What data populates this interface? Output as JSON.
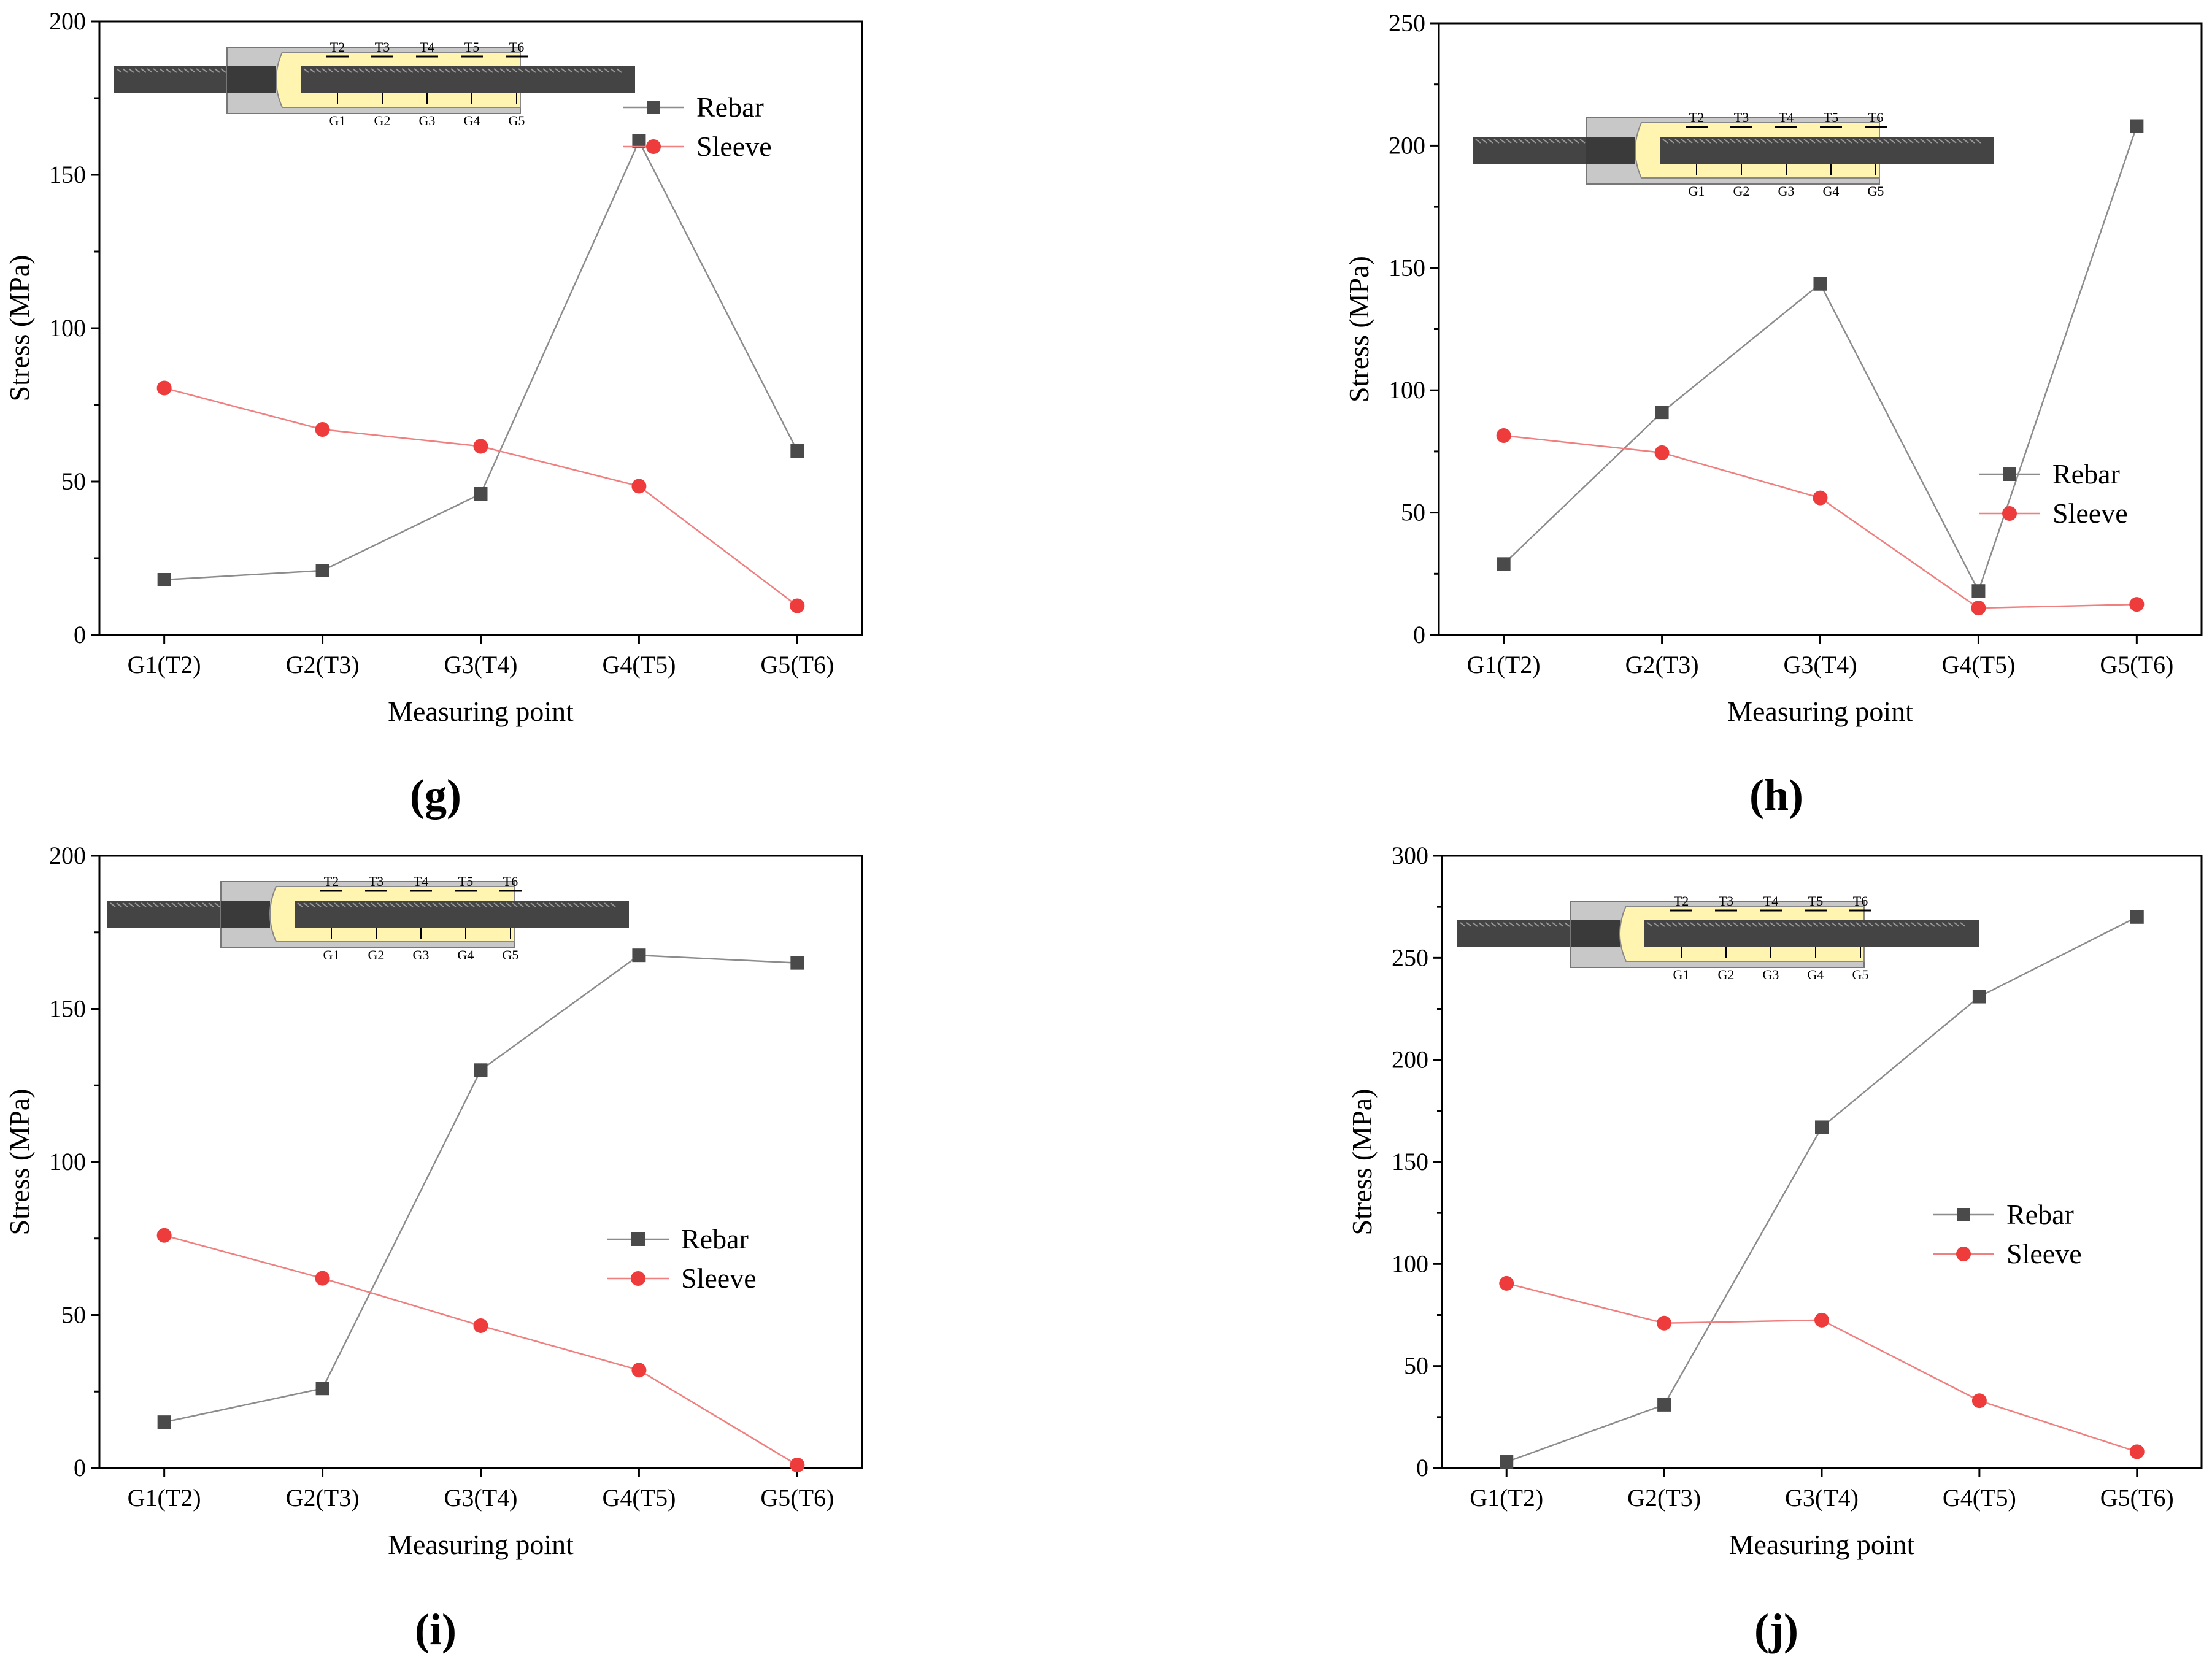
{
  "colors": {
    "rebar": "#4a4a4a",
    "rebar_line": "#8c8c8c",
    "sleeve": "#ee3b3b",
    "sleeve_line": "#f08080",
    "grout": "#fff4b0",
    "sleeve_body": "#c8c8c8",
    "bar": "#444444"
  },
  "diagram": {
    "top_labels": [
      "T2",
      "T3",
      "T4",
      "T5",
      "T6"
    ],
    "bottom_labels": [
      "G1",
      "G2",
      "G3",
      "G4",
      "G5"
    ]
  },
  "chart_data": [
    {
      "type": "line",
      "panel": "(g)",
      "categories": [
        "G1(T2)",
        "G2(T3)",
        "G3(T4)",
        "G4(T5)",
        "G5(T6)"
      ],
      "xlabel": "Measuring point",
      "ylabel": "Stress (MPa)",
      "ylim": [
        0,
        200
      ],
      "yticks": [
        0,
        50,
        100,
        150,
        200
      ],
      "legend_position": "top-right",
      "series": [
        {
          "name": "Rebar",
          "values": [
            18,
            21,
            46,
            161,
            60
          ]
        },
        {
          "name": "Sleeve",
          "values": [
            80.5,
            67,
            61.5,
            48.5,
            9.5
          ]
        }
      ]
    },
    {
      "type": "line",
      "panel": "(h)",
      "categories": [
        "G1(T2)",
        "G2(T3)",
        "G3(T4)",
        "G4(T5)",
        "G5(T6)"
      ],
      "xlabel": "Measuring point",
      "ylabel": "Stress (MPa)",
      "ylim": [
        0,
        250
      ],
      "yticks": [
        0,
        50,
        100,
        150,
        200,
        250
      ],
      "legend_position": "right",
      "series": [
        {
          "name": "Rebar",
          "values": [
            29,
            91,
            143.5,
            18,
            208
          ]
        },
        {
          "name": "Sleeve",
          "values": [
            81.5,
            74.5,
            56,
            11,
            12.5
          ]
        }
      ]
    },
    {
      "type": "line",
      "panel": "(i)",
      "categories": [
        "G1(T2)",
        "G2(T3)",
        "G3(T4)",
        "G4(T5)",
        "G5(T6)"
      ],
      "xlabel": "Measuring point",
      "ylabel": "Stress (MPa)",
      "ylim": [
        0,
        200
      ],
      "yticks": [
        0,
        50,
        100,
        150,
        200
      ],
      "legend_position": "right",
      "series": [
        {
          "name": "Rebar",
          "values": [
            15,
            26,
            130,
            167.5,
            165
          ]
        },
        {
          "name": "Sleeve",
          "values": [
            76,
            62,
            46.5,
            32,
            1
          ]
        }
      ]
    },
    {
      "type": "line",
      "panel": "(j)",
      "categories": [
        "G1(T2)",
        "G2(T3)",
        "G3(T4)",
        "G4(T5)",
        "G5(T6)"
      ],
      "xlabel": "Measuring point",
      "ylabel": "Stress (MPa)",
      "ylim": [
        0,
        300
      ],
      "yticks": [
        0,
        50,
        100,
        150,
        200,
        250,
        300
      ],
      "legend_position": "right",
      "series": [
        {
          "name": "Rebar",
          "values": [
            3,
            31,
            167,
            231,
            270
          ]
        },
        {
          "name": "Sleeve",
          "values": [
            90.5,
            71,
            72.5,
            33,
            8
          ]
        }
      ]
    }
  ]
}
